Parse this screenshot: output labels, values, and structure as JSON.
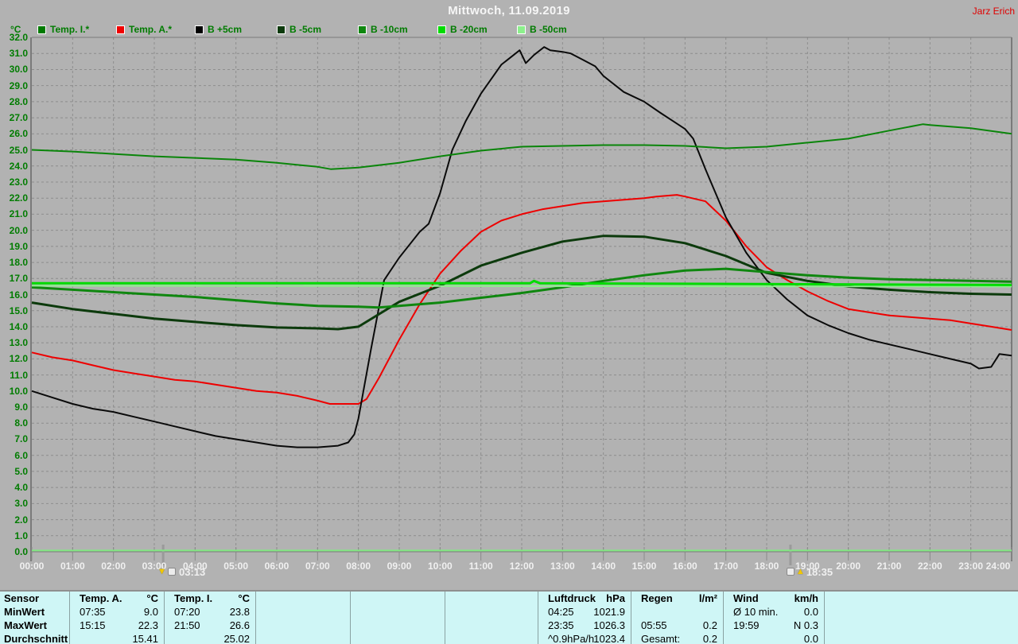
{
  "header": {
    "title": "Mittwoch, 11.09.2019",
    "author": "Jarz Erich"
  },
  "legend": {
    "unit": "°C",
    "items": [
      {
        "label": "Temp. I.*",
        "color": "#007a00"
      },
      {
        "label": "Temp. A.*",
        "color": "#f00000"
      },
      {
        "label": "B +5cm",
        "color": "#000000"
      },
      {
        "label": "B -5cm",
        "color": "#0c3a0c"
      },
      {
        "label": "B -10cm",
        "color": "#0f870f"
      },
      {
        "label": "B -20cm",
        "color": "#00dc00"
      },
      {
        "label": "B -50cm",
        "color": "#8cf08c"
      }
    ]
  },
  "chart_data": {
    "type": "line",
    "title": "Mittwoch, 11.09.2019",
    "ylabel": "°C",
    "ylim": [
      0,
      32
    ],
    "xlim_hours": [
      0,
      24
    ],
    "grid": "dashed",
    "legend_position": "top",
    "y_tick_labels": [
      "0.0",
      "1.0",
      "2.0",
      "3.0",
      "4.0",
      "5.0",
      "6.0",
      "7.0",
      "8.0",
      "9.0",
      "10.0",
      "11.0",
      "12.0",
      "13.0",
      "14.0",
      "15.0",
      "16.0",
      "17.0",
      "18.0",
      "19.0",
      "20.0",
      "21.0",
      "22.0",
      "23.0",
      "24.0",
      "25.0",
      "26.0",
      "27.0",
      "28.0",
      "29.0",
      "30.0",
      "31.0",
      "32.0"
    ],
    "x_tick_labels": [
      "00:00",
      "01:00",
      "02:00",
      "03:00",
      "04:00",
      "05:00",
      "06:00",
      "07:00",
      "08:00",
      "09:00",
      "10:00",
      "11:00",
      "12:00",
      "13:00",
      "14:00",
      "15:00",
      "16:00",
      "17:00",
      "18:00",
      "19:00",
      "20:00",
      "21:00",
      "22:00",
      "23:00",
      "24:00"
    ],
    "annotations": [
      {
        "time": "03:13",
        "x": 3.217,
        "icon": "arrow-down-then-icon"
      },
      {
        "time": "18:35",
        "x": 18.583,
        "icon": "icon-then-arrow-up"
      }
    ],
    "zero_line": {
      "value": 0.08,
      "color": "#82e882"
    },
    "series": [
      {
        "name": "Temp. A.*",
        "color": "#ee0000",
        "width": 2,
        "x": [
          0,
          0.5,
          1,
          1.5,
          2,
          2.5,
          3,
          3.5,
          4,
          4.5,
          5,
          5.5,
          6,
          6.5,
          7,
          7.3,
          7.6,
          8,
          8.2,
          8.5,
          9,
          9.5,
          10,
          10.5,
          11,
          11.5,
          12,
          12.5,
          13,
          13.5,
          14,
          14.5,
          15,
          15.3,
          15.8,
          16,
          16.5,
          17,
          17.5,
          18,
          18.5,
          19,
          19.5,
          20,
          20.5,
          21,
          21.5,
          22,
          22.5,
          23,
          23.5,
          24
        ],
        "values": [
          12.4,
          12.1,
          11.9,
          11.6,
          11.3,
          11.1,
          10.9,
          10.7,
          10.6,
          10.4,
          10.2,
          10.0,
          9.9,
          9.7,
          9.4,
          9.2,
          9.2,
          9.2,
          9.5,
          10.8,
          13.2,
          15.4,
          17.3,
          18.7,
          19.9,
          20.6,
          21.0,
          21.3,
          21.5,
          21.7,
          21.8,
          21.9,
          22.0,
          22.1,
          22.2,
          22.1,
          21.8,
          20.6,
          19.0,
          17.7,
          16.9,
          16.2,
          15.6,
          15.1,
          14.9,
          14.7,
          14.6,
          14.5,
          14.4,
          14.2,
          14.0,
          13.8
        ]
      },
      {
        "name": "B +5cm",
        "color": "#0a0a0a",
        "width": 2,
        "x": [
          0,
          0.5,
          1,
          1.5,
          2,
          2.5,
          3,
          3.5,
          4,
          4.5,
          5,
          5.5,
          6,
          6.5,
          7,
          7.5,
          7.75,
          7.9,
          8,
          8.3,
          8.63,
          9,
          9.5,
          9.72,
          10,
          10.3,
          10.63,
          11,
          11.5,
          11.95,
          12.1,
          12.3,
          12.55,
          12.7,
          13,
          13.2,
          13.5,
          13.8,
          14,
          14.5,
          15,
          15.4,
          15.7,
          16,
          16.2,
          16.5,
          17,
          17.5,
          18,
          18.5,
          19,
          19.5,
          20,
          20.5,
          21,
          21.5,
          22,
          22.5,
          23,
          23.2,
          23.5,
          23.7,
          24
        ],
        "values": [
          10.0,
          9.6,
          9.2,
          8.9,
          8.7,
          8.4,
          8.1,
          7.8,
          7.5,
          7.2,
          7.0,
          6.8,
          6.6,
          6.5,
          6.5,
          6.6,
          6.8,
          7.3,
          8.3,
          12.5,
          16.9,
          18.3,
          19.9,
          20.4,
          22.3,
          25.0,
          26.8,
          28.5,
          30.3,
          31.2,
          30.4,
          30.9,
          31.4,
          31.2,
          31.1,
          31.0,
          30.6,
          30.2,
          29.6,
          28.6,
          28.0,
          27.3,
          26.8,
          26.3,
          25.7,
          23.8,
          20.8,
          18.6,
          16.9,
          15.7,
          14.7,
          14.1,
          13.6,
          13.2,
          12.9,
          12.6,
          12.3,
          12.0,
          11.7,
          11.4,
          11.5,
          12.3,
          12.2
        ]
      },
      {
        "name": "B -5cm",
        "color": "#0c3a0c",
        "width": 3,
        "x": [
          0,
          1,
          2,
          3,
          4,
          5,
          6,
          7,
          7.5,
          8,
          9,
          10,
          11,
          12,
          13,
          14,
          15,
          16,
          17,
          18,
          19,
          20,
          21,
          22,
          23,
          24
        ],
        "values": [
          15.5,
          15.1,
          14.8,
          14.5,
          14.3,
          14.1,
          13.95,
          13.9,
          13.85,
          14.0,
          15.55,
          16.55,
          17.8,
          18.6,
          19.3,
          19.65,
          19.6,
          19.2,
          18.4,
          17.35,
          16.85,
          16.5,
          16.3,
          16.15,
          16.05,
          16.0
        ]
      },
      {
        "name": "B -10cm",
        "color": "#0f870f",
        "width": 3,
        "x": [
          0,
          1,
          2,
          3,
          4,
          5,
          6,
          7,
          8,
          8.5,
          9,
          10,
          11,
          12,
          13,
          14,
          15,
          16,
          17,
          18,
          19,
          20,
          21,
          22,
          23,
          24
        ],
        "values": [
          16.45,
          16.3,
          16.15,
          16.0,
          15.85,
          15.65,
          15.45,
          15.3,
          15.25,
          15.2,
          15.3,
          15.5,
          15.8,
          16.1,
          16.45,
          16.85,
          17.2,
          17.5,
          17.6,
          17.4,
          17.2,
          17.05,
          16.95,
          16.9,
          16.85,
          16.8
        ]
      },
      {
        "name": "Temp. I.*",
        "color": "#0a850a",
        "width": 2,
        "x": [
          0,
          1,
          2,
          3,
          4,
          5,
          6,
          7,
          7.33,
          8,
          9,
          10,
          11,
          12,
          13,
          14,
          15,
          16,
          17,
          18,
          19,
          20,
          21,
          21.83,
          22,
          23,
          24
        ],
        "values": [
          25.0,
          24.9,
          24.75,
          24.6,
          24.5,
          24.4,
          24.2,
          23.95,
          23.8,
          23.9,
          24.2,
          24.6,
          24.95,
          25.2,
          25.25,
          25.3,
          25.3,
          25.25,
          25.1,
          25.2,
          25.45,
          25.7,
          26.2,
          26.6,
          26.55,
          26.35,
          26.0
        ]
      },
      {
        "name": "B -50cm",
        "color": "#8cf08c",
        "width": 2,
        "x": [
          0,
          24
        ],
        "values": [
          16.55,
          16.5
        ]
      },
      {
        "name": "B -20cm",
        "color": "#00dc00",
        "width": 3,
        "x": [
          0,
          12.2,
          12.3,
          12.45,
          24
        ],
        "values": [
          16.7,
          16.7,
          16.85,
          16.7,
          16.6
        ]
      }
    ]
  },
  "table": {
    "row_labels": [
      "Sensor",
      "MinWert",
      "MaxWert",
      "Durchschnitt"
    ],
    "columns": [
      {
        "name": "Temp. A.",
        "unit": "°C",
        "rows": [
          [
            "07:35",
            "9.0"
          ],
          [
            "15:15",
            "22.3"
          ],
          [
            "",
            "15.41"
          ]
        ]
      },
      {
        "name": "Temp. I.",
        "unit": "°C",
        "rows": [
          [
            "07:20",
            "23.8"
          ],
          [
            "21:50",
            "26.6"
          ],
          [
            "",
            "25.02"
          ]
        ]
      },
      {
        "name": "",
        "unit": "",
        "rows": [
          [
            "",
            ""
          ],
          [
            "",
            ""
          ],
          [
            "",
            ""
          ]
        ]
      },
      {
        "name": "",
        "unit": "",
        "rows": [
          [
            "",
            ""
          ],
          [
            "",
            ""
          ],
          [
            "",
            ""
          ]
        ]
      },
      {
        "name": "",
        "unit": "",
        "rows": [
          [
            "",
            ""
          ],
          [
            "",
            ""
          ],
          [
            "",
            ""
          ]
        ]
      },
      {
        "name": "Luftdruck",
        "unit": "hPa",
        "rows": [
          [
            "04:25",
            "1021.9"
          ],
          [
            "23:35",
            "1026.3"
          ],
          [
            "^0.9hPa/h",
            "1023.4"
          ]
        ]
      },
      {
        "name": "Regen",
        "unit": "l/m²",
        "rows": [
          [
            "",
            ""
          ],
          [
            "05:55",
            "0.2"
          ],
          [
            "Gesamt:",
            "0.2"
          ]
        ]
      },
      {
        "name": "Wind",
        "unit": "km/h",
        "rows": [
          [
            "Ø 10 min.",
            "0.0"
          ],
          [
            "19:59",
            "N 0.3"
          ],
          [
            "",
            "0.0"
          ]
        ]
      },
      {
        "name": "",
        "unit": "",
        "rows": [
          [
            "",
            ""
          ],
          [
            "",
            ""
          ],
          [
            "",
            ""
          ]
        ]
      }
    ]
  }
}
